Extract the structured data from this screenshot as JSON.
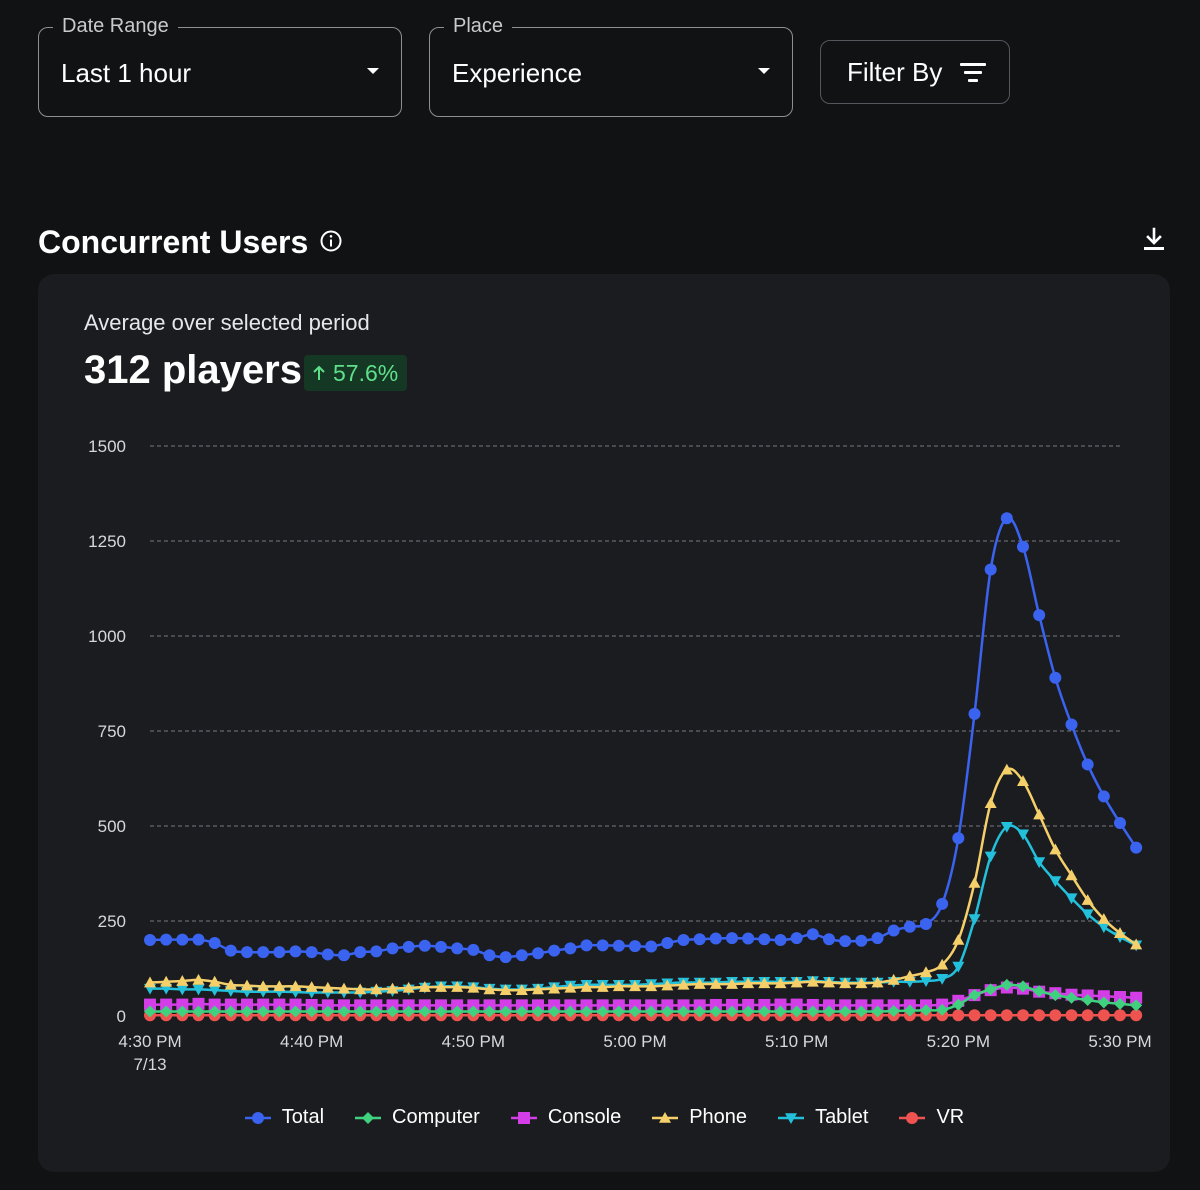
{
  "filters": {
    "date_range": {
      "label": "Date Range",
      "value": "Last 1 hour"
    },
    "place": {
      "label": "Place",
      "value": "Experience"
    },
    "filter_by": {
      "label": "Filter By"
    }
  },
  "section": {
    "title": "Concurrent Users"
  },
  "summary": {
    "label": "Average over selected period",
    "value": "312 players",
    "change": "57.6%",
    "change_color": "#5ee08a"
  },
  "chart_data": {
    "type": "line",
    "title": "Concurrent Users",
    "ylim": [
      0,
      1500
    ],
    "yticks": [
      0,
      250,
      500,
      750,
      1000,
      1250,
      1500
    ],
    "x_labels": [
      {
        "minute": 0,
        "time": "4:30 PM",
        "date": "7/13"
      },
      {
        "minute": 10,
        "time": "4:40 PM"
      },
      {
        "minute": 20,
        "time": "4:50 PM"
      },
      {
        "minute": 30,
        "time": "5:00 PM"
      },
      {
        "minute": 40,
        "time": "5:10 PM"
      },
      {
        "minute": 50,
        "time": "5:20 PM"
      },
      {
        "minute": 60,
        "time": "5:30 PM"
      }
    ],
    "xlim_minutes": [
      0,
      60
    ],
    "point_interval_minutes": 1,
    "grid": true,
    "legend_position": "bottom",
    "series": [
      {
        "name": "Total",
        "color": "#3a63f0",
        "marker": "circle",
        "values": [
          200,
          201,
          201,
          201,
          192,
          172,
          168,
          168,
          168,
          170,
          168,
          162,
          160,
          168,
          170,
          178,
          182,
          185,
          182,
          178,
          174,
          160,
          155,
          160,
          165,
          172,
          178,
          186,
          186,
          185,
          184,
          183,
          192,
          200,
          202,
          204,
          205,
          204,
          202,
          200,
          205,
          215,
          202,
          197,
          198,
          205,
          225,
          235,
          242,
          295,
          468,
          795,
          1175,
          1310,
          1235,
          1055,
          890,
          767,
          662,
          578,
          508,
          443
        ]
      },
      {
        "name": "Computer",
        "color": "#3fd17e",
        "marker": "diamond",
        "values": [
          12,
          12,
          12,
          12,
          12,
          12,
          12,
          12,
          12,
          12,
          12,
          12,
          12,
          12,
          12,
          12,
          12,
          12,
          12,
          12,
          12,
          12,
          12,
          12,
          12,
          12,
          12,
          12,
          12,
          12,
          12,
          12,
          12,
          12,
          12,
          12,
          12,
          12,
          12,
          12,
          12,
          12,
          12,
          12,
          12,
          12,
          13,
          14,
          15,
          16,
          30,
          55,
          70,
          82,
          78,
          65,
          55,
          48,
          42,
          36,
          32,
          28
        ]
      },
      {
        "name": "Console",
        "color": "#d43ee8",
        "marker": "square",
        "values": [
          30,
          30,
          30,
          32,
          30,
          30,
          30,
          30,
          30,
          30,
          29,
          28,
          28,
          28,
          28,
          28,
          28,
          28,
          28,
          28,
          28,
          28,
          28,
          28,
          28,
          28,
          28,
          28,
          28,
          28,
          28,
          28,
          28,
          28,
          28,
          29,
          29,
          29,
          29,
          30,
          30,
          29,
          28,
          28,
          28,
          28,
          28,
          28,
          28,
          30,
          40,
          55,
          68,
          75,
          72,
          64,
          60,
          56,
          54,
          52,
          50,
          48
        ]
      },
      {
        "name": "Phone",
        "color": "#f4cf6a",
        "marker": "triangle",
        "values": [
          88,
          90,
          92,
          95,
          90,
          82,
          80,
          78,
          78,
          78,
          76,
          74,
          72,
          70,
          70,
          72,
          74,
          76,
          76,
          76,
          74,
          70,
          68,
          68,
          70,
          72,
          74,
          76,
          76,
          78,
          78,
          78,
          80,
          82,
          84,
          84,
          84,
          86,
          86,
          86,
          88,
          90,
          88,
          86,
          86,
          88,
          95,
          105,
          115,
          135,
          200,
          350,
          560,
          648,
          618,
          530,
          438,
          370,
          305,
          255,
          218,
          188
        ]
      },
      {
        "name": "Tablet",
        "color": "#23c0dc",
        "marker": "triangle-down",
        "values": [
          72,
          72,
          70,
          70,
          68,
          66,
          64,
          64,
          64,
          63,
          62,
          62,
          62,
          62,
          64,
          66,
          70,
          75,
          78,
          78,
          76,
          72,
          70,
          70,
          72,
          76,
          80,
          82,
          82,
          82,
          82,
          84,
          86,
          88,
          88,
          88,
          90,
          90,
          90,
          90,
          90,
          92,
          90,
          88,
          88,
          88,
          90,
          90,
          92,
          98,
          130,
          255,
          420,
          498,
          478,
          405,
          355,
          310,
          268,
          234,
          208,
          186
        ]
      },
      {
        "name": "VR",
        "color": "#ef5350",
        "marker": "circle",
        "values": [
          2,
          2,
          2,
          2,
          2,
          2,
          2,
          2,
          2,
          2,
          2,
          2,
          2,
          2,
          2,
          2,
          2,
          2,
          2,
          2,
          2,
          2,
          2,
          2,
          2,
          2,
          2,
          2,
          2,
          2,
          2,
          2,
          2,
          2,
          2,
          2,
          2,
          2,
          2,
          2,
          2,
          2,
          2,
          2,
          2,
          2,
          2,
          2,
          2,
          2,
          2,
          2,
          2,
          2,
          2,
          2,
          2,
          2,
          2,
          2,
          2,
          2
        ]
      }
    ]
  }
}
